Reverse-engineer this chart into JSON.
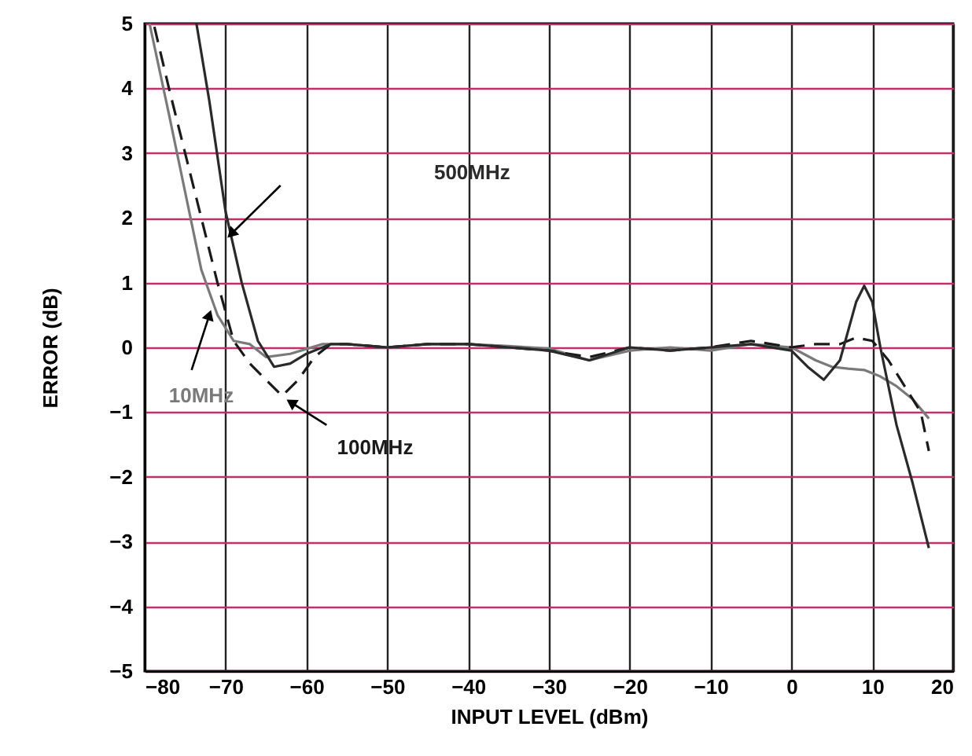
{
  "chart_data": {
    "type": "line",
    "xlabel": "INPUT LEVEL (dBm)",
    "ylabel": "ERROR (dB)",
    "xlim": [
      -80,
      20
    ],
    "xticks": [
      -80,
      -70,
      -60,
      -50,
      -40,
      -30,
      -20,
      -10,
      0,
      10,
      20
    ],
    "ylim": [
      -5,
      5
    ],
    "yticks": [
      -5,
      -4,
      -3,
      -2,
      -1,
      0,
      1,
      2,
      3,
      4,
      5
    ],
    "grid": true,
    "legend": false,
    "marker": "none",
    "series": [
      {
        "name": "10MHz",
        "color": "#7a7a7a",
        "line_style": "solid",
        "x": [
          -79.4,
          -77,
          -75,
          -73,
          -71,
          -69,
          -67,
          -65,
          -62,
          -58,
          -55,
          -50,
          -45,
          -40,
          -35,
          -30,
          -25,
          -20,
          -15,
          -10,
          -5,
          0,
          3,
          5,
          7,
          9,
          11,
          13,
          15,
          17
        ],
        "values": [
          5,
          3.6,
          2.4,
          1.2,
          0.5,
          0.1,
          0.05,
          -0.15,
          -0.1,
          0.05,
          0.05,
          0,
          0.05,
          0.05,
          0.02,
          -0.02,
          -0.2,
          -0.05,
          0,
          -0.05,
          0.05,
          0,
          -0.2,
          -0.3,
          -0.33,
          -0.35,
          -0.45,
          -0.6,
          -0.8,
          -1.1
        ]
      },
      {
        "name": "100MHz",
        "color": "#1a1a1a",
        "line_style": "dashed",
        "x": [
          -78.8,
          -77,
          -75,
          -73,
          -71,
          -69,
          -67,
          -65,
          -63,
          -61,
          -59,
          -57,
          -55,
          -50,
          -45,
          -40,
          -35,
          -30,
          -25,
          -20,
          -15,
          -10,
          -5,
          0,
          3,
          6,
          8,
          10,
          12,
          14,
          16,
          17
        ],
        "values": [
          4.95,
          4,
          3,
          2,
          1,
          0.1,
          -0.25,
          -0.5,
          -0.75,
          -0.5,
          -0.15,
          0.05,
          0.05,
          0,
          0.05,
          0.05,
          0,
          -0.05,
          -0.15,
          0,
          -0.05,
          0,
          0.1,
          0,
          0.05,
          0.05,
          0.15,
          0.1,
          -0.2,
          -0.6,
          -1.0,
          -1.6
        ]
      },
      {
        "name": "500MHz",
        "color": "#2a2a2a",
        "line_style": "solid",
        "x": [
          -73.6,
          -72,
          -70,
          -68,
          -66,
          -64,
          -62,
          -60,
          -57,
          -55,
          -50,
          -45,
          -40,
          -35,
          -30,
          -25,
          -20,
          -15,
          -10,
          -5,
          0,
          2,
          4,
          6,
          8,
          9,
          10,
          11,
          13,
          15,
          17
        ],
        "values": [
          5,
          3.8,
          2.1,
          1.0,
          0.1,
          -0.3,
          -0.25,
          -0.1,
          0.05,
          0.05,
          0,
          0.05,
          0.05,
          0,
          -0.05,
          -0.2,
          0,
          -0.05,
          0,
          0.05,
          -0.05,
          -0.3,
          -0.5,
          -0.2,
          0.7,
          0.95,
          0.7,
          0,
          -1.2,
          -2.1,
          -3.1
        ]
      }
    ]
  }
}
